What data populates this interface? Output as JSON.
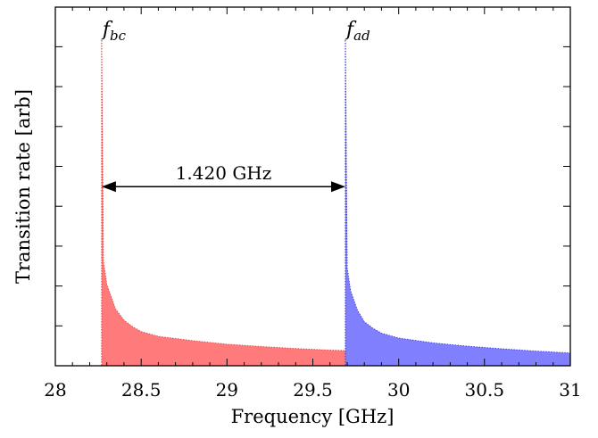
{
  "chart_data": {
    "type": "area",
    "xlabel": "Frequency [GHz]",
    "ylabel": "Transition rate [arb]",
    "xlim": [
      28,
      31
    ],
    "ylim": [
      0,
      1
    ],
    "x_ticks": [
      "28",
      "28.5",
      "29",
      "29.5",
      "30",
      "30.5",
      "31"
    ],
    "y_ticks_labeled": false,
    "grid": false,
    "legend": "none",
    "series": [
      {
        "color": "#ff7b7b",
        "edge_color": "#e05050",
        "onset": 28.27,
        "points": [
          [
            28.27,
            1.0
          ],
          [
            28.28,
            0.32
          ],
          [
            28.3,
            0.25
          ],
          [
            28.35,
            0.175
          ],
          [
            28.4,
            0.14
          ],
          [
            28.45,
            0.12
          ],
          [
            28.5,
            0.105
          ],
          [
            28.6,
            0.09
          ],
          [
            28.8,
            0.077
          ],
          [
            29.0,
            0.066
          ],
          [
            29.2,
            0.059
          ],
          [
            29.4,
            0.053
          ],
          [
            29.6,
            0.048
          ],
          [
            29.8,
            0.045
          ],
          [
            30.0,
            0.041
          ],
          [
            30.2,
            0.038
          ],
          [
            30.5,
            0.034
          ],
          [
            30.8,
            0.031
          ],
          [
            31.0,
            0.029
          ]
        ]
      },
      {
        "color": "#8080ff",
        "edge_color": "#4040e0",
        "onset": 29.69,
        "points": [
          [
            29.69,
            1.0
          ],
          [
            29.7,
            0.3
          ],
          [
            29.72,
            0.23
          ],
          [
            29.76,
            0.17
          ],
          [
            29.8,
            0.135
          ],
          [
            29.85,
            0.115
          ],
          [
            29.9,
            0.1
          ],
          [
            30.0,
            0.085
          ],
          [
            30.2,
            0.07
          ],
          [
            30.4,
            0.06
          ],
          [
            30.6,
            0.052
          ],
          [
            30.8,
            0.045
          ],
          [
            31.0,
            0.039
          ]
        ]
      }
    ],
    "annotations": {
      "peak_left": {
        "base": "f",
        "sub": "bc",
        "x": 28.27
      },
      "peak_right": {
        "base": "f",
        "sub": "ad",
        "x": 29.69
      },
      "arrow": {
        "from": 28.27,
        "to": 29.69,
        "y": 0.55,
        "label": "1.420 GHz"
      }
    }
  }
}
